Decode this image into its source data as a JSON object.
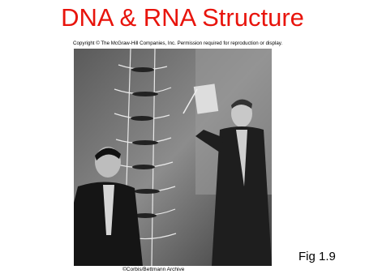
{
  "title": "DNA & RNA Structure",
  "copyright": "Copyright © The McGraw-Hill Companies, Inc. Permission required for reproduction or display.",
  "photo_credit": "©Corbis/Bettmann Archive",
  "figure_label": "Fig 1.9"
}
